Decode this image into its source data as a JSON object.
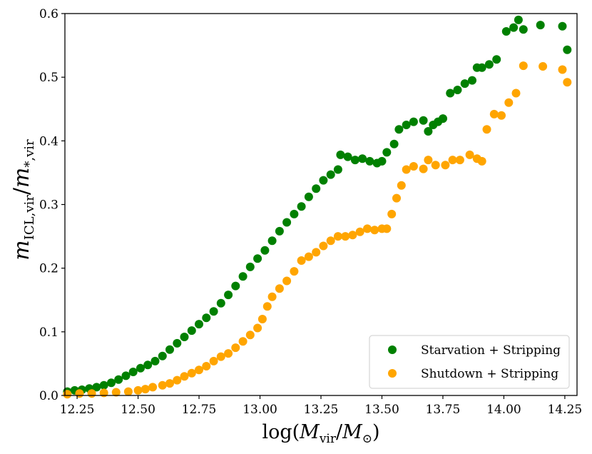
{
  "chart_data": {
    "type": "scatter",
    "xlabel": "log(M_vir/M_⊙)",
    "ylabel": "m_ICL,vir/m_*,vir",
    "xlim": [
      12.2,
      14.3
    ],
    "ylim": [
      0.0,
      0.6
    ],
    "xticks": [
      12.25,
      12.5,
      12.75,
      13.0,
      13.25,
      13.5,
      13.75,
      14.0,
      14.25
    ],
    "xtick_labels": [
      "12.25",
      "12.50",
      "12.75",
      "13.00",
      "13.25",
      "13.50",
      "13.75",
      "14.00",
      "14.25"
    ],
    "yticks": [
      0.0,
      0.1,
      0.2,
      0.3,
      0.4,
      0.5,
      0.6
    ],
    "ytick_labels": [
      "0.0",
      "0.1",
      "0.2",
      "0.3",
      "0.4",
      "0.5",
      "0.6"
    ],
    "legend_position": "lower-right",
    "grid": false,
    "series": [
      {
        "name": "Starvation + Stripping",
        "color": "#008000",
        "points": [
          [
            12.21,
            0.006
          ],
          [
            12.24,
            0.008
          ],
          [
            12.27,
            0.009
          ],
          [
            12.3,
            0.011
          ],
          [
            12.33,
            0.013
          ],
          [
            12.36,
            0.016
          ],
          [
            12.39,
            0.02
          ],
          [
            12.42,
            0.025
          ],
          [
            12.45,
            0.031
          ],
          [
            12.48,
            0.037
          ],
          [
            12.51,
            0.043
          ],
          [
            12.54,
            0.048
          ],
          [
            12.57,
            0.054
          ],
          [
            12.6,
            0.062
          ],
          [
            12.63,
            0.072
          ],
          [
            12.66,
            0.082
          ],
          [
            12.69,
            0.092
          ],
          [
            12.72,
            0.102
          ],
          [
            12.75,
            0.112
          ],
          [
            12.78,
            0.122
          ],
          [
            12.81,
            0.132
          ],
          [
            12.84,
            0.145
          ],
          [
            12.87,
            0.158
          ],
          [
            12.9,
            0.172
          ],
          [
            12.93,
            0.187
          ],
          [
            12.96,
            0.202
          ],
          [
            12.99,
            0.215
          ],
          [
            13.02,
            0.228
          ],
          [
            13.05,
            0.243
          ],
          [
            13.08,
            0.258
          ],
          [
            13.11,
            0.272
          ],
          [
            13.14,
            0.285
          ],
          [
            13.17,
            0.297
          ],
          [
            13.2,
            0.312
          ],
          [
            13.23,
            0.325
          ],
          [
            13.26,
            0.338
          ],
          [
            13.29,
            0.347
          ],
          [
            13.32,
            0.355
          ],
          [
            13.33,
            0.378
          ],
          [
            13.36,
            0.375
          ],
          [
            13.39,
            0.37
          ],
          [
            13.42,
            0.372
          ],
          [
            13.45,
            0.368
          ],
          [
            13.48,
            0.365
          ],
          [
            13.5,
            0.368
          ],
          [
            13.52,
            0.382
          ],
          [
            13.55,
            0.395
          ],
          [
            13.57,
            0.418
          ],
          [
            13.6,
            0.425
          ],
          [
            13.63,
            0.43
          ],
          [
            13.67,
            0.432
          ],
          [
            13.69,
            0.415
          ],
          [
            13.71,
            0.425
          ],
          [
            13.73,
            0.43
          ],
          [
            13.75,
            0.435
          ],
          [
            13.78,
            0.475
          ],
          [
            13.81,
            0.48
          ],
          [
            13.84,
            0.49
          ],
          [
            13.87,
            0.495
          ],
          [
            13.89,
            0.515
          ],
          [
            13.91,
            0.515
          ],
          [
            13.94,
            0.52
          ],
          [
            13.97,
            0.528
          ],
          [
            14.01,
            0.572
          ],
          [
            14.04,
            0.578
          ],
          [
            14.06,
            0.59
          ],
          [
            14.08,
            0.575
          ],
          [
            14.15,
            0.582
          ],
          [
            14.24,
            0.58
          ],
          [
            14.26,
            0.543
          ]
        ]
      },
      {
        "name": "Shutdown + Stripping",
        "color": "#FFA500",
        "points": [
          [
            12.21,
            0.002
          ],
          [
            12.26,
            0.003
          ],
          [
            12.31,
            0.003
          ],
          [
            12.36,
            0.004
          ],
          [
            12.41,
            0.005
          ],
          [
            12.46,
            0.006
          ],
          [
            12.5,
            0.008
          ],
          [
            12.53,
            0.01
          ],
          [
            12.56,
            0.013
          ],
          [
            12.6,
            0.016
          ],
          [
            12.63,
            0.019
          ],
          [
            12.66,
            0.024
          ],
          [
            12.69,
            0.03
          ],
          [
            12.72,
            0.035
          ],
          [
            12.75,
            0.04
          ],
          [
            12.78,
            0.046
          ],
          [
            12.81,
            0.054
          ],
          [
            12.84,
            0.061
          ],
          [
            12.87,
            0.066
          ],
          [
            12.9,
            0.075
          ],
          [
            12.93,
            0.085
          ],
          [
            12.96,
            0.095
          ],
          [
            12.99,
            0.106
          ],
          [
            13.01,
            0.12
          ],
          [
            13.03,
            0.14
          ],
          [
            13.05,
            0.155
          ],
          [
            13.08,
            0.168
          ],
          [
            13.11,
            0.18
          ],
          [
            13.14,
            0.195
          ],
          [
            13.17,
            0.212
          ],
          [
            13.2,
            0.218
          ],
          [
            13.23,
            0.225
          ],
          [
            13.26,
            0.235
          ],
          [
            13.29,
            0.243
          ],
          [
            13.32,
            0.25
          ],
          [
            13.35,
            0.25
          ],
          [
            13.38,
            0.252
          ],
          [
            13.41,
            0.257
          ],
          [
            13.44,
            0.262
          ],
          [
            13.47,
            0.26
          ],
          [
            13.5,
            0.262
          ],
          [
            13.52,
            0.262
          ],
          [
            13.54,
            0.285
          ],
          [
            13.56,
            0.31
          ],
          [
            13.58,
            0.33
          ],
          [
            13.6,
            0.355
          ],
          [
            13.63,
            0.36
          ],
          [
            13.67,
            0.356
          ],
          [
            13.69,
            0.37
          ],
          [
            13.72,
            0.362
          ],
          [
            13.76,
            0.362
          ],
          [
            13.79,
            0.37
          ],
          [
            13.82,
            0.37
          ],
          [
            13.86,
            0.378
          ],
          [
            13.89,
            0.372
          ],
          [
            13.91,
            0.368
          ],
          [
            13.93,
            0.418
          ],
          [
            13.96,
            0.442
          ],
          [
            13.99,
            0.44
          ],
          [
            14.02,
            0.46
          ],
          [
            14.05,
            0.475
          ],
          [
            14.08,
            0.518
          ],
          [
            14.16,
            0.517
          ],
          [
            14.24,
            0.512
          ],
          [
            14.26,
            0.492
          ]
        ]
      }
    ]
  }
}
